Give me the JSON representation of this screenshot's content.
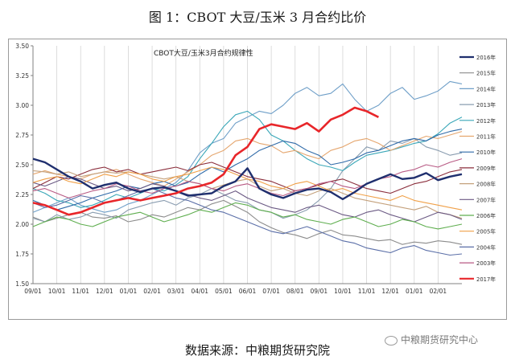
{
  "figure_title": "图 1：CBOT 大豆/玉米 3 月合约比价",
  "source_note": "数据来源：中粮期货研究院",
  "watermark": "中粮期货研究中心",
  "chart_data": {
    "type": "line",
    "title": "CBOT大豆/玉米3月合约规律性",
    "xlabel": "",
    "ylabel": "",
    "ylim": [
      1.5,
      3.5
    ],
    "yticks": [
      "1.50",
      "1.75",
      "2.00",
      "2.25",
      "2.50",
      "2.75",
      "3.00",
      "3.25",
      "3.50"
    ],
    "xticks": [
      "09/01",
      "10/01",
      "11/01",
      "12/01",
      "01/01",
      "02/01",
      "03/01",
      "04/01",
      "05/01",
      "06/01",
      "07/01",
      "08/01",
      "09/01",
      "10/01",
      "11/01",
      "12/01",
      "01/01",
      "02/01"
    ],
    "grid": "vertical",
    "legend_position": "right",
    "x_month_index": [
      0,
      0.5,
      1,
      1.5,
      2,
      2.5,
      3,
      3.5,
      4,
      4.5,
      5,
      5.5,
      6,
      6.5,
      7,
      7.5,
      8,
      8.5,
      9,
      9.5,
      10,
      10.5,
      11,
      11.5,
      12,
      12.5,
      13,
      13.5,
      14,
      14.5,
      15,
      15.5,
      16,
      16.5,
      17,
      17.5,
      18
    ],
    "series": [
      {
        "name": "2016年",
        "color": "#1f2f6e",
        "width": 2.4,
        "values": [
          2.55,
          2.52,
          2.46,
          2.4,
          2.36,
          2.3,
          2.33,
          2.35,
          2.3,
          2.27,
          2.3,
          2.31,
          2.28,
          2.24,
          2.25,
          2.26,
          2.32,
          2.36,
          2.47,
          2.3,
          2.25,
          2.22,
          2.26,
          2.29,
          2.3,
          2.27,
          2.21,
          2.27,
          2.34,
          2.38,
          2.42,
          2.38,
          2.39,
          2.43,
          2.37,
          2.4,
          2.42
        ]
      },
      {
        "name": "2015年",
        "color": "#8c8c8c",
        "width": 1.1,
        "values": [
          2.06,
          2.02,
          2.05,
          2.08,
          2.1,
          2.06,
          2.05,
          2.07,
          2.02,
          2.04,
          2.08,
          2.06,
          2.1,
          2.14,
          2.12,
          2.17,
          2.2,
          2.15,
          2.1,
          2.02,
          1.97,
          1.93,
          1.91,
          1.88,
          1.92,
          1.95,
          1.91,
          1.9,
          1.88,
          1.86,
          1.87,
          1.83,
          1.85,
          1.84,
          1.86,
          1.85,
          1.83
        ]
      },
      {
        "name": "2014年",
        "color": "#6f9fc8",
        "width": 1.1,
        "values": [
          2.1,
          2.14,
          2.18,
          2.22,
          2.16,
          2.13,
          2.1,
          2.12,
          2.17,
          2.2,
          2.25,
          2.3,
          2.35,
          2.45,
          2.6,
          2.68,
          2.72,
          2.85,
          2.9,
          2.95,
          2.93,
          3.0,
          3.1,
          3.15,
          3.08,
          3.1,
          3.18,
          3.05,
          2.95,
          3.0,
          3.1,
          3.15,
          3.05,
          3.08,
          3.12,
          3.2,
          3.18
        ]
      },
      {
        "name": "2013年",
        "color": "#8a9db0",
        "width": 1.1,
        "values": [
          2.05,
          2.02,
          2.08,
          2.04,
          2.06,
          2.1,
          2.08,
          2.05,
          2.12,
          2.15,
          2.18,
          2.2,
          2.16,
          2.22,
          2.25,
          2.3,
          2.25,
          2.2,
          2.18,
          2.12,
          2.1,
          2.05,
          2.08,
          2.12,
          2.2,
          2.3,
          2.45,
          2.55,
          2.65,
          2.62,
          2.7,
          2.68,
          2.72,
          2.65,
          2.62,
          2.58,
          2.6
        ]
      },
      {
        "name": "2012年",
        "color": "#3aa7b8",
        "width": 1.1,
        "values": [
          2.3,
          2.26,
          2.2,
          2.18,
          2.14,
          2.16,
          2.2,
          2.25,
          2.22,
          2.26,
          2.3,
          2.28,
          2.33,
          2.4,
          2.55,
          2.68,
          2.82,
          2.92,
          2.95,
          2.88,
          2.75,
          2.7,
          2.62,
          2.55,
          2.5,
          2.48,
          2.45,
          2.52,
          2.58,
          2.6,
          2.62,
          2.65,
          2.68,
          2.7,
          2.76,
          2.85,
          2.9
        ]
      },
      {
        "name": "2011年",
        "color": "#e5a66e",
        "width": 1.1,
        "values": [
          2.42,
          2.45,
          2.42,
          2.4,
          2.38,
          2.42,
          2.44,
          2.46,
          2.42,
          2.38,
          2.35,
          2.32,
          2.38,
          2.44,
          2.5,
          2.58,
          2.62,
          2.7,
          2.72,
          2.68,
          2.66,
          2.6,
          2.62,
          2.58,
          2.55,
          2.62,
          2.65,
          2.7,
          2.72,
          2.68,
          2.62,
          2.66,
          2.7,
          2.74,
          2.72,
          2.75,
          2.78
        ]
      },
      {
        "name": "2010年",
        "color": "#2f6aa8",
        "width": 1.1,
        "values": [
          2.2,
          2.16,
          2.12,
          2.15,
          2.18,
          2.22,
          2.25,
          2.28,
          2.32,
          2.3,
          2.34,
          2.36,
          2.32,
          2.35,
          2.42,
          2.48,
          2.44,
          2.5,
          2.55,
          2.62,
          2.66,
          2.7,
          2.68,
          2.62,
          2.58,
          2.5,
          2.52,
          2.55,
          2.6,
          2.62,
          2.66,
          2.7,
          2.72,
          2.7,
          2.75,
          2.78,
          2.8
        ]
      },
      {
        "name": "2009年",
        "color": "#8b2e3c",
        "width": 1.1,
        "values": [
          2.3,
          2.35,
          2.4,
          2.38,
          2.42,
          2.46,
          2.48,
          2.44,
          2.46,
          2.42,
          2.44,
          2.46,
          2.48,
          2.45,
          2.5,
          2.52,
          2.48,
          2.44,
          2.4,
          2.38,
          2.36,
          2.32,
          2.28,
          2.3,
          2.33,
          2.36,
          2.38,
          2.34,
          2.3,
          2.28,
          2.26,
          2.3,
          2.34,
          2.36,
          2.4,
          2.44,
          2.46
        ]
      },
      {
        "name": "2008年",
        "color": "#c4a17c",
        "width": 1.1,
        "values": [
          2.45,
          2.44,
          2.42,
          2.44,
          2.4,
          2.42,
          2.44,
          2.43,
          2.44,
          2.42,
          2.4,
          2.38,
          2.4,
          2.36,
          2.34,
          2.3,
          2.33,
          2.36,
          2.38,
          2.32,
          2.28,
          2.3,
          2.26,
          2.24,
          2.28,
          2.3,
          2.26,
          2.22,
          2.2,
          2.18,
          2.16,
          2.14,
          2.12,
          2.15,
          2.1,
          2.08,
          2.05
        ]
      },
      {
        "name": "2007年",
        "color": "#6b5a84",
        "width": 1.1,
        "values": [
          2.35,
          2.32,
          2.36,
          2.4,
          2.38,
          2.34,
          2.3,
          2.32,
          2.28,
          2.3,
          2.34,
          2.32,
          2.28,
          2.25,
          2.22,
          2.2,
          2.24,
          2.28,
          2.22,
          2.18,
          2.14,
          2.12,
          2.1,
          2.14,
          2.16,
          2.12,
          2.08,
          2.06,
          2.1,
          2.12,
          2.08,
          2.05,
          2.02,
          2.06,
          2.1,
          2.08,
          2.04
        ]
      },
      {
        "name": "2006年",
        "color": "#5fae4f",
        "width": 1.1,
        "values": [
          1.98,
          2.02,
          2.06,
          2.04,
          2.0,
          1.98,
          2.02,
          2.06,
          2.08,
          2.1,
          2.06,
          2.02,
          2.05,
          2.08,
          2.12,
          2.1,
          2.14,
          2.18,
          2.16,
          2.12,
          2.1,
          2.06,
          2.08,
          2.04,
          2.02,
          2.0,
          2.04,
          2.06,
          2.02,
          1.98,
          2.0,
          2.04,
          2.02,
          1.98,
          1.96,
          1.98,
          2.0
        ]
      },
      {
        "name": "2005年",
        "color": "#f0a048",
        "width": 1.1,
        "values": [
          2.35,
          2.38,
          2.4,
          2.36,
          2.34,
          2.38,
          2.42,
          2.4,
          2.44,
          2.42,
          2.38,
          2.36,
          2.4,
          2.42,
          2.45,
          2.48,
          2.46,
          2.42,
          2.38,
          2.36,
          2.32,
          2.3,
          2.34,
          2.36,
          2.32,
          2.28,
          2.3,
          2.26,
          2.24,
          2.22,
          2.2,
          2.24,
          2.2,
          2.18,
          2.16,
          2.14,
          2.12
        ]
      },
      {
        "name": "2004年",
        "color": "#5b6fa8",
        "width": 1.1,
        "values": [
          2.18,
          2.14,
          2.16,
          2.2,
          2.24,
          2.22,
          2.18,
          2.2,
          2.24,
          2.28,
          2.3,
          2.26,
          2.22,
          2.2,
          2.16,
          2.12,
          2.1,
          2.06,
          2.02,
          1.98,
          1.94,
          1.92,
          1.95,
          1.98,
          1.94,
          1.9,
          1.86,
          1.84,
          1.8,
          1.78,
          1.76,
          1.8,
          1.82,
          1.78,
          1.76,
          1.74,
          1.75
        ]
      },
      {
        "name": "2003年",
        "color": "#b85a84",
        "width": 1.1,
        "values": [
          2.28,
          2.3,
          2.26,
          2.22,
          2.25,
          2.28,
          2.3,
          2.34,
          2.32,
          2.28,
          2.26,
          2.3,
          2.32,
          2.36,
          2.34,
          2.3,
          2.28,
          2.32,
          2.34,
          2.3,
          2.26,
          2.24,
          2.28,
          2.3,
          2.34,
          2.36,
          2.32,
          2.3,
          2.34,
          2.38,
          2.4,
          2.44,
          2.46,
          2.5,
          2.48,
          2.52,
          2.55
        ]
      },
      {
        "name": "2017年",
        "color": "#e8262a",
        "width": 2.6,
        "values": [
          2.18,
          2.16,
          2.12,
          2.08,
          2.1,
          2.14,
          2.18,
          2.2,
          2.22,
          2.2,
          2.22,
          2.24,
          2.26,
          2.3,
          2.32,
          2.35,
          2.42,
          2.58,
          2.65,
          2.8,
          2.84,
          2.82,
          2.8,
          2.85,
          2.78,
          2.88,
          2.92,
          2.98,
          2.95,
          2.9
        ]
      }
    ]
  }
}
